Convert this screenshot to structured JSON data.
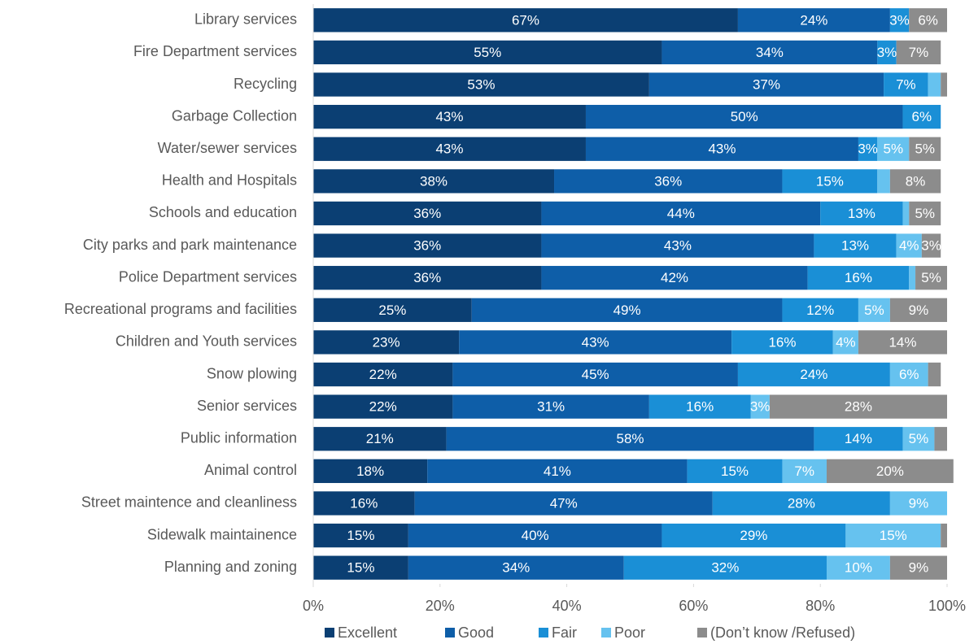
{
  "chart_data": {
    "type": "stacked_bar_horizontal",
    "categories": [
      "Library services",
      "Fire Department services",
      "Recycling",
      "Garbage Collection",
      "Water/sewer services",
      "Health and Hospitals",
      "Schools and education",
      "City parks and park maintenance",
      "Police Department services",
      "Recreational programs and facilities",
      "Children and Youth services",
      "Snow plowing",
      "Senior services",
      "Public information",
      "Animal control",
      "Street maintence and cleanliness",
      "Sidewalk maintainence",
      "Planning and zoning"
    ],
    "series": [
      {
        "name": "Excellent",
        "color": "#0b3f73",
        "values": [
          67,
          55,
          53,
          43,
          43,
          38,
          36,
          36,
          36,
          25,
          23,
          22,
          22,
          21,
          18,
          16,
          15,
          15
        ],
        "value_labels": [
          "67%",
          "55%",
          "53%",
          "43%",
          "43%",
          "38%",
          "36%",
          "36%",
          "36%",
          "25%",
          "23%",
          "22%",
          "22%",
          "21%",
          "18%",
          "16%",
          "15%",
          "15%"
        ]
      },
      {
        "name": "Good",
        "color": "#0e5ea8",
        "values": [
          24,
          34,
          37,
          50,
          43,
          36,
          44,
          43,
          42,
          49,
          43,
          45,
          31,
          58,
          41,
          47,
          40,
          34
        ],
        "value_labels": [
          "24%",
          "34%",
          "37%",
          "50%",
          "43%",
          "36%",
          "44%",
          "43%",
          "42%",
          "49%",
          "43%",
          "45%",
          "31%",
          "58%",
          "41%",
          "47%",
          "40%",
          "34%"
        ]
      },
      {
        "name": "Fair",
        "color": "#1a8fd6",
        "values": [
          3,
          3,
          7,
          6,
          3,
          15,
          13,
          13,
          16,
          12,
          16,
          24,
          16,
          14,
          15,
          28,
          29,
          32
        ],
        "value_labels": [
          "3%",
          "3%",
          "7%",
          "6%",
          "3%",
          "15%",
          "13%",
          "13%",
          "16%",
          "12%",
          "16%",
          "24%",
          "16%",
          "14%",
          "15%",
          "28%",
          "29%",
          "32%"
        ]
      },
      {
        "name": "Poor",
        "color": "#66c2ef",
        "values": [
          0,
          0,
          2,
          0,
          5,
          2,
          1,
          4,
          1,
          5,
          4,
          6,
          3,
          5,
          7,
          9,
          15,
          10
        ],
        "value_labels": [
          null,
          null,
          null,
          null,
          "5%",
          null,
          null,
          "4%",
          null,
          "5%",
          "4%",
          "6%",
          "3%",
          "5%",
          "7%",
          "9%",
          "15%",
          "10%"
        ]
      },
      {
        "name": "(Don’t know /Refused)",
        "color": "#8c8c8c",
        "values": [
          6,
          7,
          1,
          0,
          5,
          8,
          5,
          3,
          5,
          9,
          14,
          2,
          28,
          2,
          20,
          0,
          1,
          9
        ],
        "value_labels": [
          "6%",
          "7%",
          null,
          null,
          "5%",
          "8%",
          "5%",
          "3%",
          "5%",
          "9%",
          "14%",
          null,
          "28%",
          null,
          "20%",
          null,
          null,
          "9%"
        ]
      }
    ],
    "xlim": [
      0,
      100
    ],
    "xticks": [
      {
        "value": 0,
        "label": "0%"
      },
      {
        "value": 20,
        "label": "20%"
      },
      {
        "value": 40,
        "label": "40%"
      },
      {
        "value": 60,
        "label": "60%"
      },
      {
        "value": 80,
        "label": "80%"
      },
      {
        "value": 100,
        "label": "100%"
      }
    ],
    "legend": "bottom"
  }
}
